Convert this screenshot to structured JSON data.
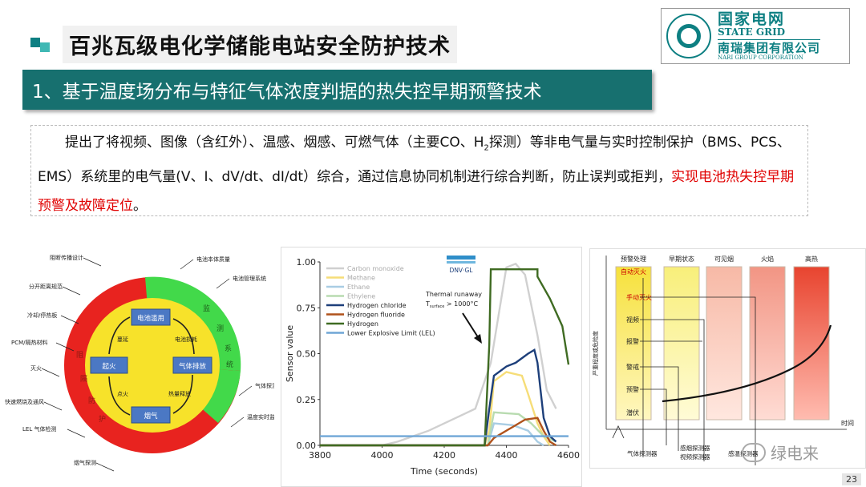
{
  "slide": {
    "title": "百兆瓦级电化学储能电站安全防护技术",
    "section_title": "1、基于温度场分布与特征气体浓度判据的热失控早期预警技术",
    "page_number": "23"
  },
  "logo": {
    "cn": "国家电网",
    "en": "STATE GRID",
    "nari_cn": "南瑞集团有限公司",
    "nari_en": "NARI GROUP CORPORATION"
  },
  "description": {
    "part1": "提出了将视频、图像（含红外）、温感、烟感、可燃气体（主要CO、H",
    "sub": "2",
    "part2": "探测）等非电气量与实时控制保护（BMS、PCS、EMS）系统里的电气量(V、I、dV/dt、dI/dt）综合，通过信息协同机制进行综合判断，防止误判或拒判，",
    "highlight": "实现电池热失控早期预警及故障定位",
    "end": "。"
  },
  "cycle_diagram": {
    "outer_left_labels": [
      "阻断传播设计",
      "分开距离规范",
      "冷却/停热板",
      "PCM/隔热材料",
      "灭火",
      "快速燃烧及通风",
      "LEL 气体检测",
      "烟气探测"
    ],
    "outer_right_labels": [
      "电池本体质量",
      "电池管理系统",
      "气体探测装置",
      "温度实时监测"
    ],
    "ring_labels": {
      "red": "阻隔防护",
      "green": "监测系统"
    },
    "nodes": [
      "电池滥用",
      "气体排放",
      "烟气",
      "起火"
    ],
    "arrow_labels": [
      "电池损耗",
      "热量释放",
      "点火",
      "蔓延"
    ]
  },
  "chart_data": {
    "type": "line",
    "xlabel": "Time (seconds)",
    "ylabel": "Sensor value",
    "xlim": [
      3800,
      4600
    ],
    "ylim": [
      0,
      1.0
    ],
    "x_ticks": [
      "3800",
      "4000",
      "4200",
      "4400",
      "4600"
    ],
    "y_ticks": [
      "0.00",
      "0.25",
      "0.50",
      "0.75",
      "1.00"
    ],
    "brand": "DNV·GL",
    "annotation": "Thermal runaway",
    "annotation_sub": "T",
    "annotation_sub2": "surface",
    "annotation_tail": " > 1000°C",
    "series": [
      {
        "name": "Carbon monoxide",
        "color": "#d0d0d0",
        "points": [
          [
            3800,
            0
          ],
          [
            4000,
            0
          ],
          [
            4050,
            0.02
          ],
          [
            4150,
            0.08
          ],
          [
            4250,
            0.16
          ],
          [
            4300,
            0.2
          ],
          [
            4350,
            0.45
          ],
          [
            4400,
            0.97
          ],
          [
            4430,
            0.99
          ],
          [
            4460,
            0.93
          ],
          [
            4500,
            0.6
          ],
          [
            4530,
            0.3
          ],
          [
            4560,
            0.2
          ]
        ]
      },
      {
        "name": "Methane",
        "color": "#f6dd78",
        "points": [
          [
            3800,
            0
          ],
          [
            4330,
            0
          ],
          [
            4345,
            0.08
          ],
          [
            4360,
            0.35
          ],
          [
            4400,
            0.4
          ],
          [
            4450,
            0.38
          ],
          [
            4470,
            0.28
          ],
          [
            4500,
            0.12
          ],
          [
            4520,
            0.05
          ],
          [
            4540,
            0
          ]
        ]
      },
      {
        "name": "Ethane",
        "color": "#a9cde4",
        "points": [
          [
            3800,
            0
          ],
          [
            4340,
            0
          ],
          [
            4360,
            0.12
          ],
          [
            4420,
            0.11
          ],
          [
            4470,
            0.08
          ],
          [
            4500,
            0.02
          ],
          [
            4520,
            0
          ]
        ]
      },
      {
        "name": "Ethylene",
        "color": "#b8dbb0",
        "points": [
          [
            3800,
            0
          ],
          [
            4340,
            0
          ],
          [
            4360,
            0.18
          ],
          [
            4440,
            0.17
          ],
          [
            4480,
            0.12
          ],
          [
            4520,
            0.05
          ],
          [
            4560,
            0.02
          ]
        ]
      },
      {
        "name": "Hydrogen chloride",
        "color": "#1d3f7a",
        "points": [
          [
            3800,
            0
          ],
          [
            4330,
            0
          ],
          [
            4345,
            0.2
          ],
          [
            4360,
            0.38
          ],
          [
            4400,
            0.43
          ],
          [
            4430,
            0.45
          ],
          [
            4470,
            0.5
          ],
          [
            4490,
            0.52
          ],
          [
            4500,
            0.45
          ],
          [
            4520,
            0.15
          ],
          [
            4540,
            0.05
          ],
          [
            4560,
            0.02
          ]
        ]
      },
      {
        "name": "Hydrogen fluoride",
        "color": "#b0521b",
        "points": [
          [
            3800,
            0
          ],
          [
            4340,
            0
          ],
          [
            4360,
            0.04
          ],
          [
            4420,
            0.1
          ],
          [
            4460,
            0.14
          ],
          [
            4500,
            0.15
          ],
          [
            4520,
            0.08
          ],
          [
            4540,
            0.02
          ],
          [
            4560,
            0
          ]
        ]
      },
      {
        "name": "Hydrogen",
        "color": "#3f6b22",
        "points": [
          [
            3800,
            0
          ],
          [
            4330,
            0
          ],
          [
            4345,
            0.55
          ],
          [
            4350,
            0.96
          ],
          [
            4500,
            0.96
          ],
          [
            4500,
            0.92
          ],
          [
            4540,
            0.8
          ],
          [
            4580,
            0.65
          ],
          [
            4600,
            0.44
          ]
        ]
      },
      {
        "name": "Lower Explosive Limit (LEL)",
        "color": "#6fa6d6",
        "points": [
          [
            3800,
            0.05
          ],
          [
            4600,
            0.05
          ]
        ]
      }
    ]
  },
  "warning_chart": {
    "columns": [
      "预警处理",
      "早期状态",
      "可见烟",
      "火焰",
      "高热"
    ],
    "levels": [
      "自动灭火",
      "手动灭火",
      "视频",
      "报警",
      "警戒",
      "预警",
      "潜伏"
    ],
    "detectors": [
      "气体探测器",
      "感烟探测器",
      "视频探测器",
      "感温探测器"
    ],
    "y_axis": "严重程度或危险度",
    "x_axis": "时间"
  },
  "watermark": "绿电来"
}
